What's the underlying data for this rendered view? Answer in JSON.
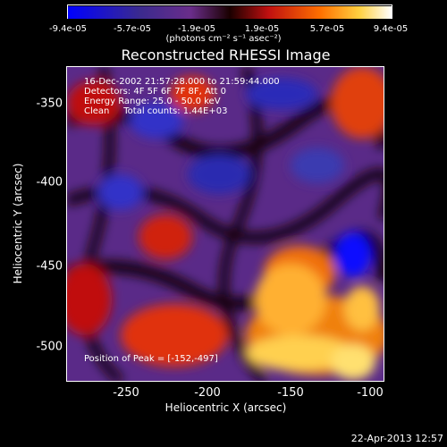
{
  "colorbar": {
    "ticks": [
      "-9.4e-05",
      "-5.7e-05",
      "-1.9e-05",
      "1.9e-05",
      "5.7e-05",
      "9.4e-05"
    ],
    "units": "(photons cm⁻² s⁻¹ asec⁻²)"
  },
  "title": "Reconstructed RHESSI Image",
  "info": {
    "line1": "16-Dec-2002 21:57:28.000 to 21:59:44.000",
    "line2": "Detectors: 4F 5F 6F 7F 8F, Att 0",
    "line3": "Energy Range: 25.0 - 50.0 keV",
    "line4": "Clean     Total counts: 1.44E+03",
    "peak": "Position of Peak = [-152,-497]"
  },
  "axes": {
    "xlabel": "Heliocentric X (arcsec)",
    "ylabel": "Heliocentric Y (arcsec)",
    "xticks": [
      "-250",
      "-200",
      "-150",
      "-100"
    ],
    "yticks": [
      "-350",
      "-400",
      "-450",
      "-500"
    ]
  },
  "timestamp": "22-Apr-2013 12:57"
}
